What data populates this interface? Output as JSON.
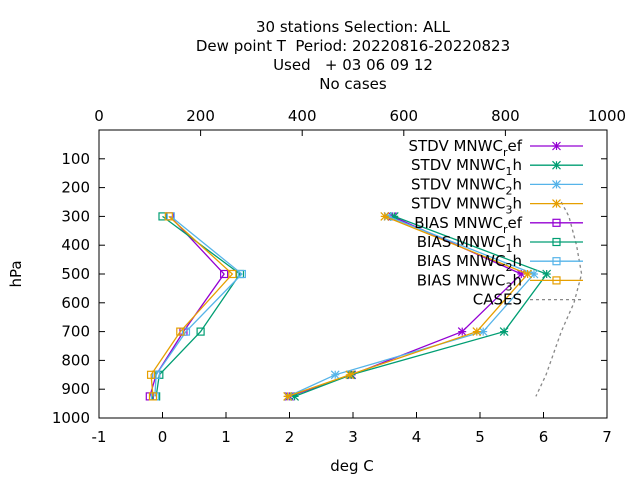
{
  "chart_data": {
    "type": "line",
    "title_lines": [
      "30 stations Selection: ALL",
      "Dew point T  Period: 20220816-20220823",
      "Used   + 03 06 09 12",
      "No cases"
    ],
    "xlabel": "deg C",
    "ylabel": "hPa",
    "xlim": [
      -1,
      7
    ],
    "ylim": [
      1000,
      0
    ],
    "x2lim": [
      0,
      1000
    ],
    "x_ticks": [
      "-1",
      "0",
      "1",
      "2",
      "3",
      "4",
      "5",
      "6",
      "7"
    ],
    "y_ticks": [
      "100",
      "200",
      "300",
      "400",
      "500",
      "600",
      "700",
      "800",
      "900",
      "1000"
    ],
    "x2_ticks": [
      "0",
      "200",
      "400",
      "600",
      "800",
      "1000"
    ],
    "grid": false,
    "legend_position": "top-right",
    "levels": [
      300,
      500,
      700,
      850,
      925
    ],
    "series": [
      {
        "name": "STDV MNWC_ref",
        "label_main": "STDV MNWC",
        "label_sub": "r",
        "label_tail": "ef",
        "color": "#9400d3",
        "marker": "star",
        "values": [
          3.62,
          5.65,
          4.72,
          2.98,
          2.0
        ]
      },
      {
        "name": "STDV MNWC_1h",
        "label_main": "STDV MNWC",
        "label_sub": "1",
        "label_tail": "h",
        "color": "#009e73",
        "marker": "star",
        "values": [
          3.65,
          6.05,
          5.38,
          2.97,
          2.08
        ]
      },
      {
        "name": "STDV MNWC_2h",
        "label_main": "STDV MNWC",
        "label_sub": "2",
        "label_tail": "h",
        "color": "#56b4e9",
        "marker": "star",
        "values": [
          3.55,
          5.85,
          5.05,
          2.72,
          1.98
        ]
      },
      {
        "name": "STDV MNWC_3h",
        "label_main": "STDV MNWC",
        "label_sub": "3",
        "label_tail": "h",
        "color": "#e69f00",
        "marker": "star",
        "values": [
          3.5,
          5.75,
          4.95,
          2.95,
          1.97
        ]
      },
      {
        "name": "BIAS MNWC_ref",
        "label_main": "BIAS MNWC",
        "label_sub": "r",
        "label_tail": "ef",
        "color": "#9400d3",
        "marker": "square",
        "values": [
          0.12,
          0.97,
          0.33,
          -0.1,
          -0.2
        ]
      },
      {
        "name": "BIAS MNWC_1h",
        "label_main": "BIAS MNWC",
        "label_sub": "1",
        "label_tail": "h",
        "color": "#009e73",
        "marker": "square",
        "values": [
          0.0,
          1.22,
          0.6,
          -0.05,
          -0.1
        ]
      },
      {
        "name": "BIAS MNWC_2h",
        "label_main": "BIAS MNWC",
        "label_sub": "2",
        "label_tail": "h",
        "color": "#56b4e9",
        "marker": "square",
        "values": [
          0.13,
          1.25,
          0.37,
          -0.1,
          -0.12
        ]
      },
      {
        "name": "BIAS MNWC_3h",
        "label_main": "BIAS MNWC",
        "label_sub": "3",
        "label_tail": "h",
        "color": "#e69f00",
        "marker": "square",
        "values": [
          0.1,
          1.1,
          0.28,
          -0.18,
          -0.15
        ]
      }
    ],
    "cases_series": {
      "name": "CASES",
      "color": "#888888",
      "style": "dashed",
      "axis": "x2",
      "levels": [
        250,
        300,
        400,
        500,
        600,
        700,
        850,
        925
      ],
      "values": [
        910,
        925,
        940,
        950,
        935,
        910,
        880,
        860
      ]
    }
  }
}
